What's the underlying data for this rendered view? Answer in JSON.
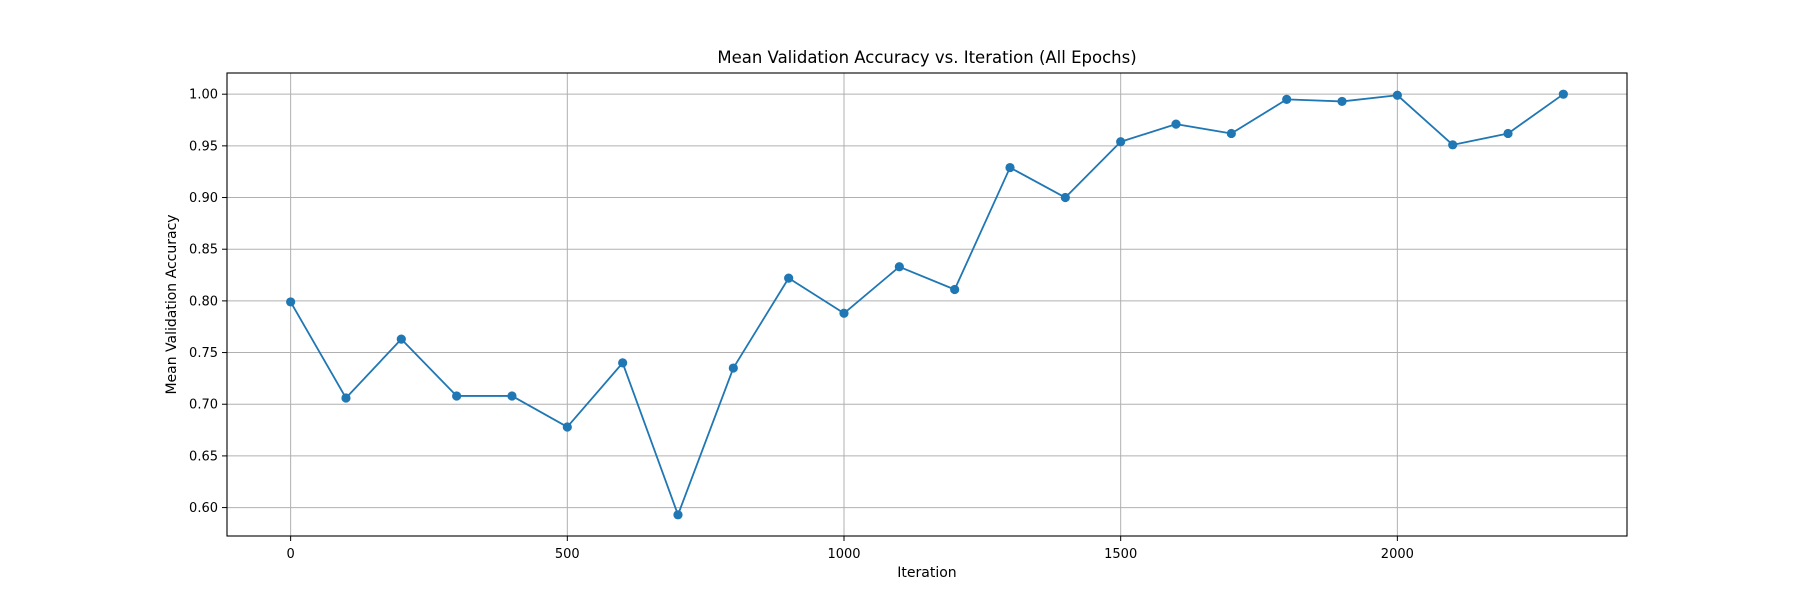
{
  "chart_data": {
    "type": "line",
    "title": "Mean Validation Accuracy vs. Iteration (All Epochs)",
    "xlabel": "Iteration",
    "ylabel": "Mean Validation Accuracy",
    "xlim": [
      -115,
      2415
    ],
    "ylim": [
      0.5725,
      1.0205
    ],
    "xticks": [
      0,
      500,
      1000,
      1500,
      2000
    ],
    "yticks": [
      0.6,
      0.65,
      0.7,
      0.75,
      0.8,
      0.85,
      0.9,
      0.95,
      1.0
    ],
    "grid": true,
    "legend": "none",
    "series": [
      {
        "color": "#1f77b4",
        "marker": "circle",
        "x": [
          0,
          100,
          200,
          300,
          400,
          500,
          600,
          700,
          800,
          900,
          1000,
          1100,
          1200,
          1300,
          1400,
          1500,
          1600,
          1700,
          1800,
          1900,
          2000,
          2100,
          2200,
          2300
        ],
        "y": [
          0.799,
          0.706,
          0.763,
          0.708,
          0.708,
          0.678,
          0.74,
          0.593,
          0.735,
          0.822,
          0.788,
          0.833,
          0.811,
          0.929,
          0.9,
          0.954,
          0.971,
          0.962,
          0.995,
          0.993,
          0.999,
          0.951,
          0.962,
          1.0
        ]
      }
    ]
  }
}
